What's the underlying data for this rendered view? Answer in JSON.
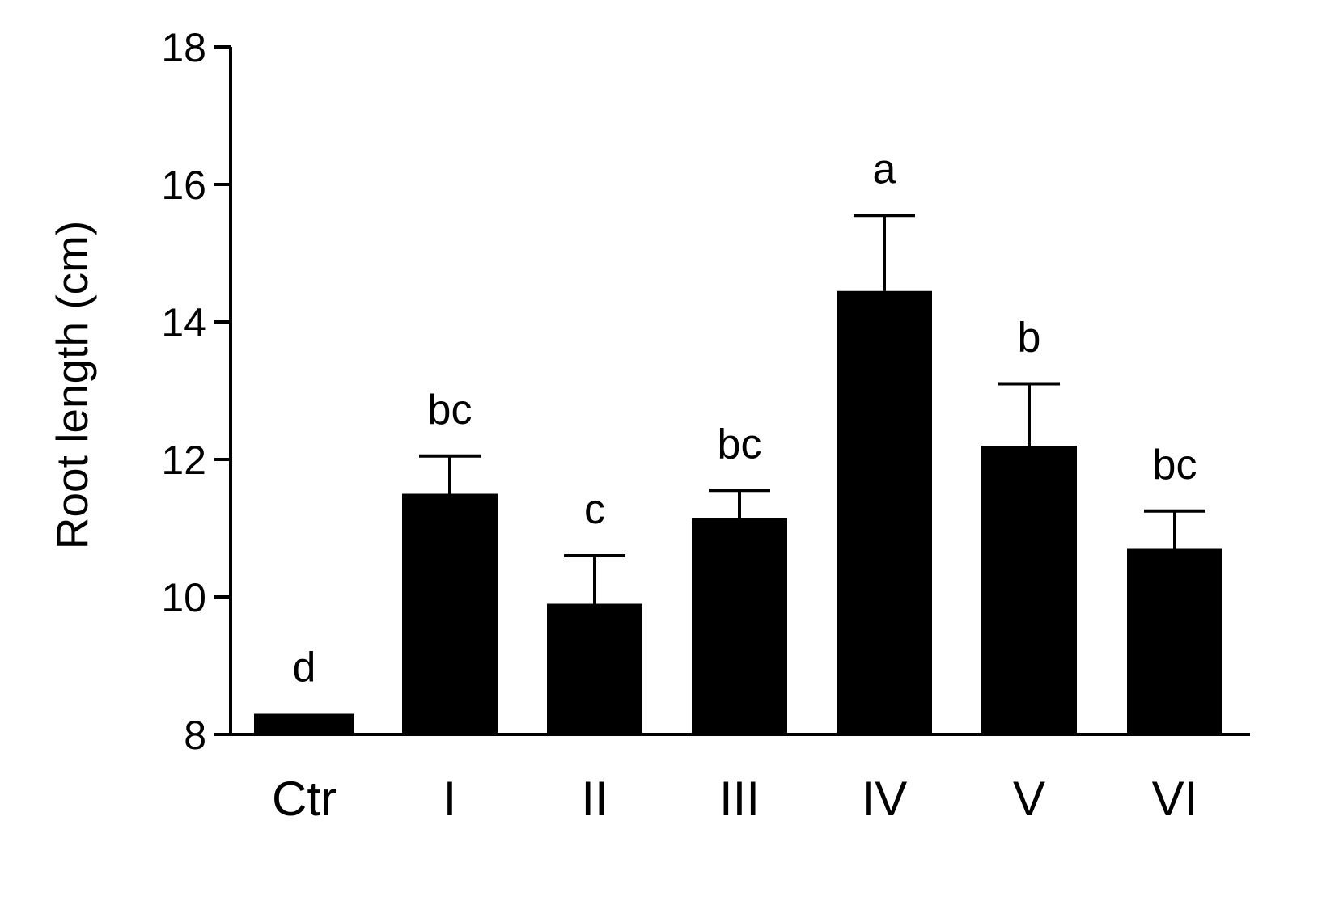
{
  "chart_data": {
    "type": "bar",
    "categories": [
      "Ctr",
      "I",
      "II",
      "III",
      "IV",
      "V",
      "VI"
    ],
    "values": [
      8.3,
      11.5,
      9.9,
      11.15,
      14.45,
      12.2,
      10.7
    ],
    "errors": [
      0,
      0.55,
      0.7,
      0.4,
      1.1,
      0.9,
      0.55
    ],
    "significance": [
      "d",
      "bc",
      "c",
      "bc",
      "a",
      "b",
      "bc"
    ],
    "ylabel": "Root length (cm)",
    "xlabel": "",
    "title": "",
    "ylim": [
      8,
      18
    ],
    "yticks": [
      8,
      10,
      12,
      14,
      16,
      18
    ],
    "grid": false,
    "legend": "none",
    "bar_color": "#000000"
  }
}
